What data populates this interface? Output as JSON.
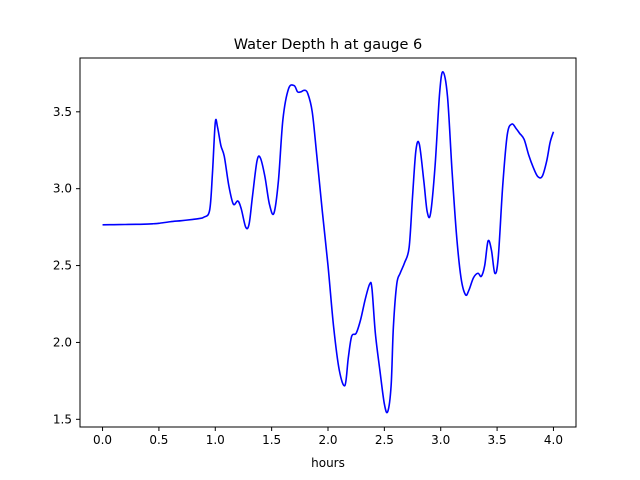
{
  "chart_data": {
    "type": "line",
    "title": "Water Depth h at gauge 6",
    "xlabel": "hours",
    "ylabel": "",
    "xlim": [
      -0.2,
      4.2
    ],
    "ylim": [
      1.45,
      3.85
    ],
    "xticks": [
      0.0,
      0.5,
      1.0,
      1.5,
      2.0,
      2.5,
      3.0,
      3.5,
      4.0
    ],
    "xtick_labels": [
      "0.0",
      "0.5",
      "1.0",
      "1.5",
      "2.0",
      "2.5",
      "3.0",
      "3.5",
      "4.0"
    ],
    "yticks": [
      1.5,
      2.0,
      2.5,
      3.0,
      3.5
    ],
    "ytick_labels": [
      "1.5",
      "2.0",
      "2.5",
      "3.0",
      "3.5"
    ],
    "grid": false,
    "colors": {
      "line": "#0000ff",
      "axes": "#000000",
      "background": "#ffffff"
    },
    "series": [
      {
        "name": "",
        "x": [
          0.0,
          0.1,
          0.2,
          0.3,
          0.4,
          0.45,
          0.5,
          0.6,
          0.7,
          0.8,
          0.85,
          0.9,
          0.95,
          0.975,
          1.0,
          1.02,
          1.05,
          1.08,
          1.12,
          1.16,
          1.2,
          1.23,
          1.27,
          1.3,
          1.33,
          1.37,
          1.4,
          1.44,
          1.48,
          1.52,
          1.56,
          1.6,
          1.65,
          1.7,
          1.73,
          1.76,
          1.79,
          1.82,
          1.86,
          1.9,
          1.95,
          2.0,
          2.05,
          2.1,
          2.15,
          2.18,
          2.21,
          2.25,
          2.29,
          2.33,
          2.37,
          2.39,
          2.42,
          2.46,
          2.5,
          2.53,
          2.56,
          2.58,
          2.61,
          2.64,
          2.68,
          2.72,
          2.75,
          2.78,
          2.81,
          2.85,
          2.88,
          2.91,
          2.95,
          2.99,
          3.02,
          3.06,
          3.1,
          3.14,
          3.18,
          3.22,
          3.25,
          3.29,
          3.33,
          3.36,
          3.39,
          3.42,
          3.45,
          3.48,
          3.51,
          3.55,
          3.59,
          3.63,
          3.67,
          3.7,
          3.74,
          3.78,
          3.82,
          3.86,
          3.9,
          3.94,
          3.97,
          4.0
        ],
        "y": [
          2.765,
          2.766,
          2.767,
          2.768,
          2.77,
          2.772,
          2.775,
          2.785,
          2.792,
          2.8,
          2.805,
          2.815,
          2.86,
          3.1,
          3.43,
          3.4,
          3.28,
          3.21,
          3.02,
          2.9,
          2.92,
          2.87,
          2.75,
          2.77,
          2.95,
          3.18,
          3.2,
          3.08,
          2.9,
          2.84,
          3.05,
          3.45,
          3.65,
          3.67,
          3.63,
          3.63,
          3.64,
          3.62,
          3.5,
          3.22,
          2.85,
          2.5,
          2.1,
          1.82,
          1.72,
          1.9,
          2.04,
          2.06,
          2.15,
          2.28,
          2.38,
          2.35,
          2.06,
          1.82,
          1.6,
          1.55,
          1.72,
          2.1,
          2.38,
          2.45,
          2.52,
          2.62,
          2.95,
          3.25,
          3.29,
          3.05,
          2.85,
          2.84,
          3.15,
          3.62,
          3.76,
          3.6,
          3.12,
          2.7,
          2.42,
          2.31,
          2.34,
          2.42,
          2.45,
          2.43,
          2.5,
          2.66,
          2.6,
          2.45,
          2.55,
          3.02,
          3.35,
          3.42,
          3.39,
          3.36,
          3.32,
          3.22,
          3.14,
          3.08,
          3.08,
          3.18,
          3.3,
          3.37
        ]
      }
    ]
  }
}
